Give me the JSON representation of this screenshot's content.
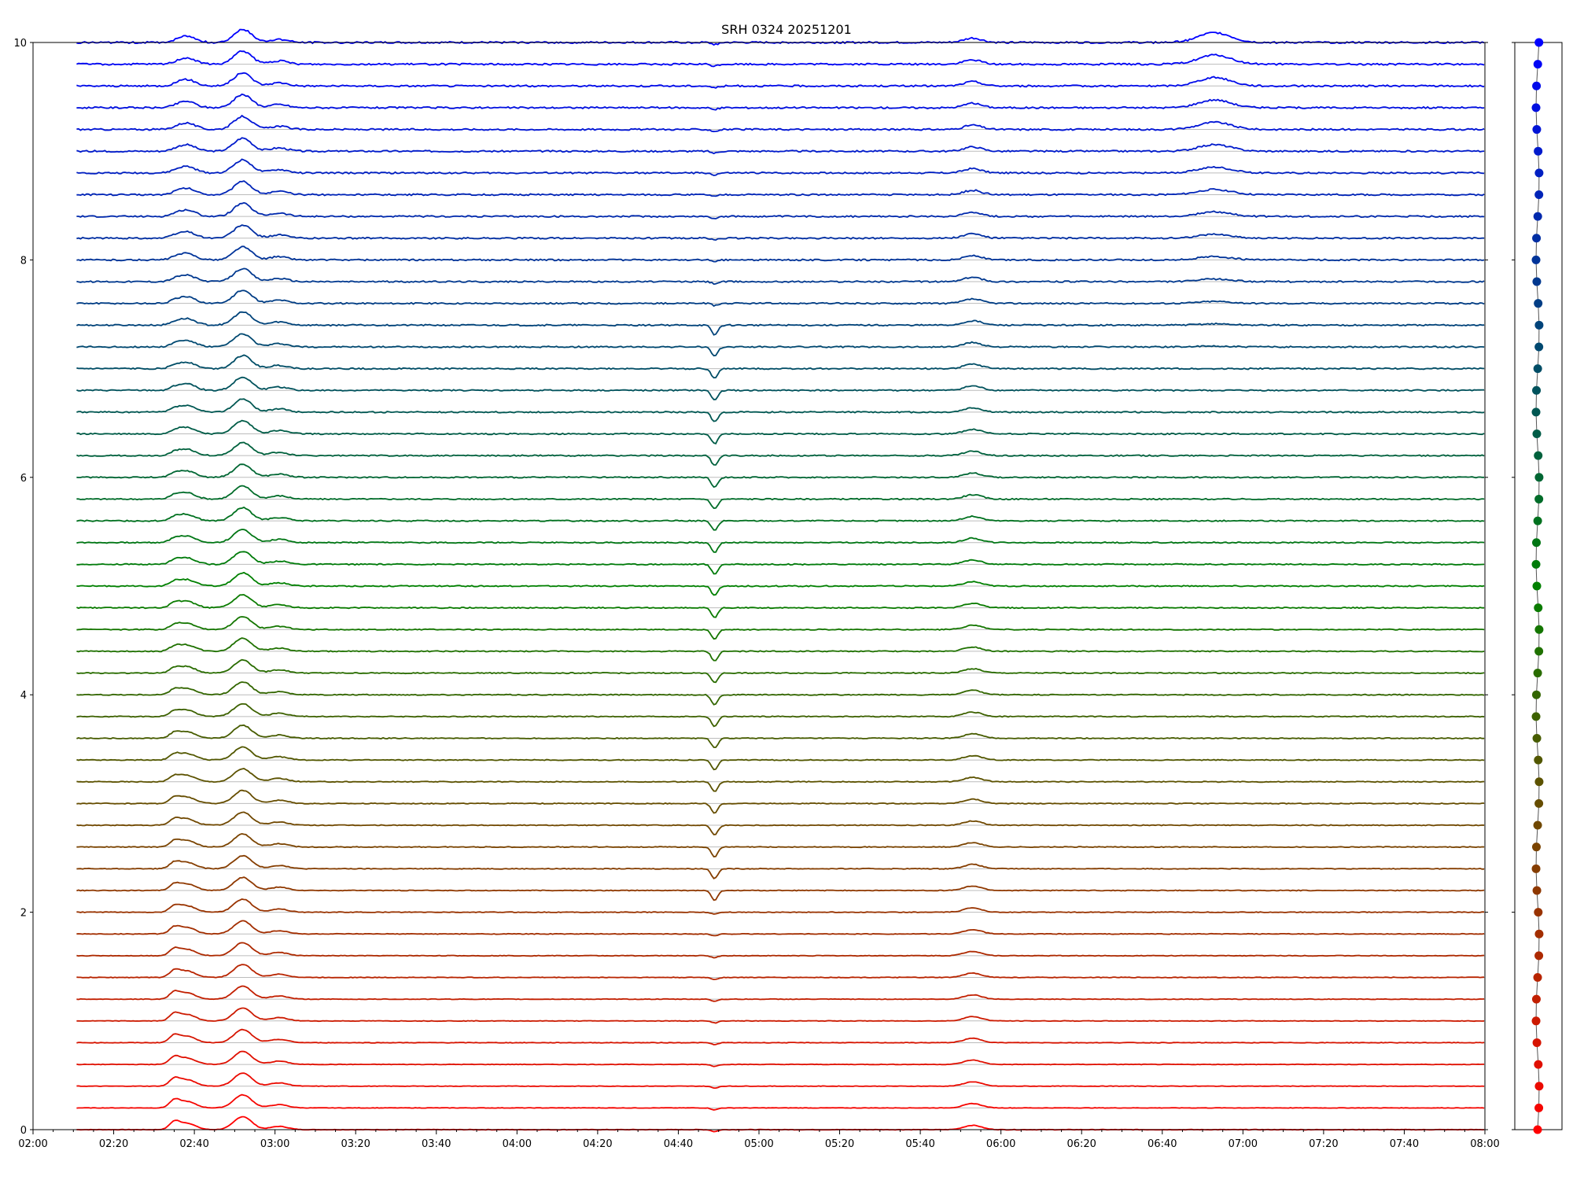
{
  "chart_data": {
    "type": "line",
    "title": "SRH 0324 20251201",
    "xlabel": "",
    "ylabel": "",
    "x_range": [
      "02:00",
      "08:00"
    ],
    "ylim": [
      0,
      10
    ],
    "x_ticks": [
      "02:00",
      "02:20",
      "02:40",
      "03:00",
      "03:20",
      "03:40",
      "04:00",
      "04:20",
      "04:40",
      "05:00",
      "05:20",
      "05:40",
      "06:00",
      "06:20",
      "06:40",
      "07:00",
      "07:20",
      "07:40",
      "08:00"
    ],
    "y_ticks": [
      "0",
      "2",
      "4",
      "6",
      "8",
      "10"
    ],
    "grid": "horizontal baseline per series",
    "legend": "none",
    "series_count": 51,
    "series_offset_step": 0.2,
    "color_start": "#ff0000",
    "color_mid": "#008000",
    "color_end": "#0000ff",
    "events": [
      {
        "time": "02:35",
        "kind": "rise",
        "amplitude": 0.06
      },
      {
        "time": "02:38",
        "kind": "bump",
        "amplitude": 0.06
      },
      {
        "time": "02:52",
        "kind": "peak",
        "amplitude": 0.12
      },
      {
        "time": "03:01",
        "kind": "bump",
        "amplitude": 0.03
      },
      {
        "time": "04:49",
        "kind": "dip",
        "amplitude": -0.09
      },
      {
        "time": "05:53",
        "kind": "bump",
        "amplitude": 0.04
      },
      {
        "time": "06:53",
        "kind": "peak",
        "amplitude": 0.09
      }
    ],
    "side_panel": {
      "type": "scatter",
      "y_values_start": 0,
      "y_values_step": 0.2,
      "count": 51
    }
  }
}
